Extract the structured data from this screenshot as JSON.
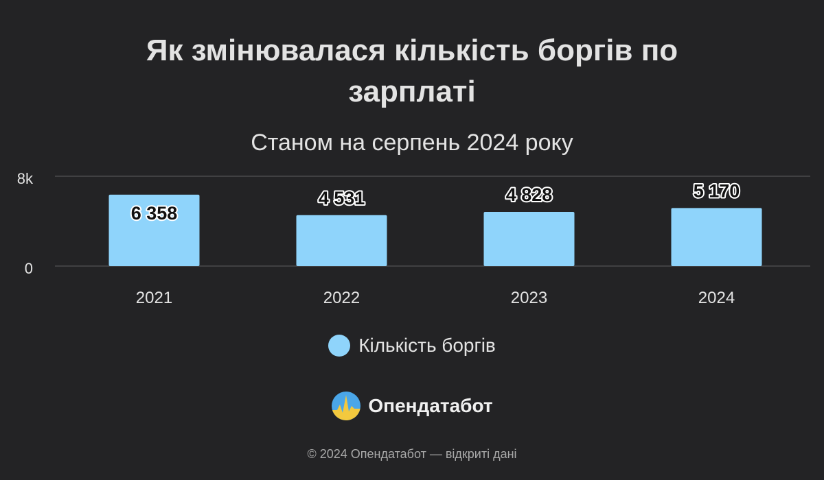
{
  "chart_data": {
    "type": "bar",
    "title": "Як змінювалася кількість боргів по зарплаті",
    "subtitle": "Станом на серпень 2024 року",
    "categories": [
      "2021",
      "2022",
      "2023",
      "2024"
    ],
    "series": [
      {
        "name": "Кількість боргів",
        "values": [
          6358,
          4531,
          4828,
          5170
        ],
        "color": "#8fd4fb"
      }
    ],
    "data_labels": [
      "6 358",
      "4 531",
      "4 828",
      "5 170"
    ],
    "y_ticks": [
      {
        "value": 0,
        "label": "0"
      },
      {
        "value": 8000,
        "label": "8k"
      }
    ],
    "ylim": [
      0,
      8000
    ],
    "grid": true,
    "legend_position": "bottom"
  },
  "brand": {
    "name": "Опендатабот"
  },
  "footer": {
    "text": "© 2024 Опендатабот — відкриті дані"
  },
  "colors": {
    "background": "#232325",
    "bar": "#8fd4fb",
    "grid": "#4a4a4d"
  }
}
